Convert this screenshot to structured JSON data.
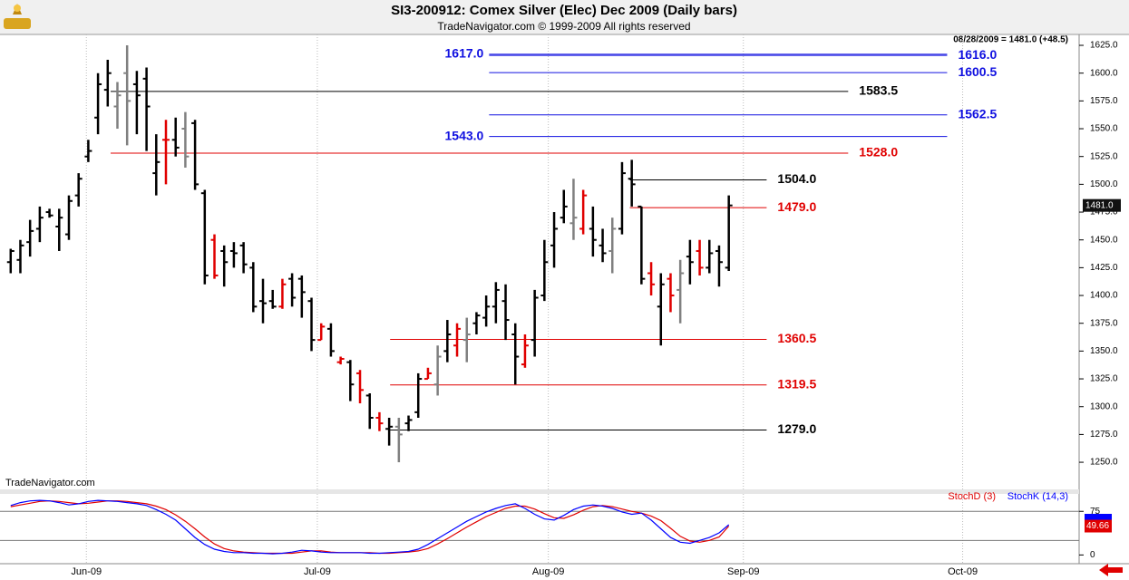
{
  "chart_data": [
    {
      "type": "ohlc",
      "title": "SI3-200912:  Comex Silver (Elec) Dec 2009  (Daily bars)",
      "subtitle": "TradeNavigator.com © 1999-2009 All rights reserved",
      "notice": "08/28/2009 = 1481.0 (+48.5)",
      "watermark": "TradeNavigator.com",
      "last_label": "1481.0",
      "x": [
        0,
        1,
        2,
        3,
        4,
        5,
        6,
        7,
        8,
        9,
        10,
        11,
        12,
        13,
        14,
        15,
        16,
        17,
        18,
        19,
        20,
        21,
        22,
        23,
        24,
        25,
        26,
        27,
        28,
        29,
        30,
        31,
        32,
        33,
        34,
        35,
        36,
        37,
        38,
        39,
        40,
        41,
        42,
        43,
        44,
        45,
        46,
        47,
        48,
        49,
        50,
        51,
        52,
        53,
        54,
        55,
        56,
        57,
        58,
        59,
        60,
        61,
        62,
        63,
        64,
        65,
        66,
        67,
        68,
        69,
        70,
        71,
        72,
        73,
        74
      ],
      "open": [
        1430,
        1432,
        1448,
        1460,
        1475,
        1462,
        1455,
        1490,
        1525,
        1560,
        1585,
        1570,
        1600,
        1590,
        1595,
        1510,
        1540,
        1540,
        1550,
        1555,
        1492,
        1450,
        1440,
        1440,
        1445,
        1425,
        1395,
        1395,
        1390,
        1415,
        1415,
        1395,
        1360,
        1370,
        1340,
        1340,
        1330,
        1310,
        1290,
        1280,
        1282,
        1285,
        1295,
        1325,
        1320,
        1350,
        1355,
        1360,
        1375,
        1380,
        1390,
        1395,
        1365,
        1338,
        1360,
        1400,
        1445,
        1470,
        1465,
        1460,
        1460,
        1445,
        1440,
        1460,
        1505,
        1480,
        1420,
        1390,
        1415,
        1405,
        1435,
        1440,
        1425,
        1440,
        1425
      ],
      "high": [
        1442,
        1450,
        1468,
        1480,
        1478,
        1478,
        1490,
        1510,
        1540,
        1600,
        1612,
        1592,
        1625,
        1602,
        1605,
        1545,
        1558,
        1560,
        1565,
        1558,
        1495,
        1455,
        1445,
        1448,
        1448,
        1430,
        1415,
        1405,
        1415,
        1420,
        1418,
        1398,
        1375,
        1375,
        1345,
        1342,
        1333,
        1312,
        1295,
        1290,
        1290,
        1292,
        1330,
        1335,
        1355,
        1378,
        1375,
        1380,
        1385,
        1400,
        1412,
        1410,
        1375,
        1365,
        1405,
        1450,
        1475,
        1495,
        1505,
        1495,
        1480,
        1460,
        1470,
        1520,
        1522,
        1480,
        1430,
        1420,
        1420,
        1432,
        1450,
        1450,
        1450,
        1445,
        1490
      ],
      "low": [
        1420,
        1420,
        1435,
        1448,
        1470,
        1440,
        1450,
        1480,
        1520,
        1545,
        1570,
        1550,
        1535,
        1545,
        1530,
        1490,
        1500,
        1525,
        1515,
        1495,
        1410,
        1415,
        1408,
        1425,
        1420,
        1385,
        1375,
        1388,
        1388,
        1390,
        1380,
        1350,
        1360,
        1345,
        1338,
        1305,
        1303,
        1280,
        1278,
        1265,
        1250,
        1278,
        1290,
        1325,
        1310,
        1340,
        1345,
        1340,
        1365,
        1372,
        1375,
        1360,
        1320,
        1335,
        1345,
        1395,
        1425,
        1465,
        1450,
        1455,
        1435,
        1430,
        1420,
        1455,
        1480,
        1410,
        1400,
        1355,
        1385,
        1375,
        1410,
        1418,
        1420,
        1408,
        1422
      ],
      "close": [
        1440,
        1445,
        1458,
        1470,
        1472,
        1470,
        1485,
        1505,
        1530,
        1590,
        1600,
        1580,
        1575,
        1580,
        1570,
        1520,
        1540,
        1533,
        1525,
        1500,
        1418,
        1418,
        1430,
        1438,
        1428,
        1390,
        1393,
        1390,
        1410,
        1398,
        1403,
        1360,
        1372,
        1350,
        1343,
        1320,
        1315,
        1290,
        1285,
        1282,
        1275,
        1288,
        1325,
        1330,
        1345,
        1365,
        1370,
        1365,
        1382,
        1390,
        1405,
        1378,
        1345,
        1355,
        1398,
        1430,
        1460,
        1480,
        1470,
        1490,
        1450,
        1438,
        1460,
        1510,
        1500,
        1415,
        1410,
        1410,
        1400,
        1420,
        1430,
        1425,
        1438,
        1430,
        1481
      ],
      "bar_colors": [
        "#000000",
        "#000000",
        "#000000",
        "#000000",
        "#000000",
        "#000000",
        "#000000",
        "#000000",
        "#000000",
        "#000000",
        "#000000",
        "#808080",
        "#808080",
        "#000000",
        "#000000",
        "#000000",
        "#e00000",
        "#000000",
        "#808080",
        "#000000",
        "#000000",
        "#e00000",
        "#000000",
        "#000000",
        "#000000",
        "#000000",
        "#000000",
        "#000000",
        "#e00000",
        "#000000",
        "#000000",
        "#000000",
        "#e00000",
        "#000000",
        "#e00000",
        "#000000",
        "#e00000",
        "#000000",
        "#e00000",
        "#000000",
        "#808080",
        "#000000",
        "#000000",
        "#e00000",
        "#808080",
        "#000000",
        "#e00000",
        "#808080",
        "#000000",
        "#000000",
        "#000000",
        "#000000",
        "#000000",
        "#e00000",
        "#000000",
        "#000000",
        "#000000",
        "#000000",
        "#808080",
        "#e00000",
        "#000000",
        "#000000",
        "#808080",
        "#000000",
        "#000000",
        "#000000",
        "#e00000",
        "#000000",
        "#e00000",
        "#808080",
        "#000000",
        "#e00000",
        "#000000",
        "#000000",
        "#000000"
      ],
      "xlim": [
        -1.1,
        110.1
      ],
      "ylim": [
        1225.6,
        1634.8
      ],
      "yticks": [
        {
          "value": 1250,
          "label": "1250.0"
        },
        {
          "value": 1275,
          "label": "1275.0"
        },
        {
          "value": 1300,
          "label": "1300.0"
        },
        {
          "value": 1325,
          "label": "1325.0"
        },
        {
          "value": 1350,
          "label": "1350.0"
        },
        {
          "value": 1375,
          "label": "1375.0"
        },
        {
          "value": 1400,
          "label": "1400.0"
        },
        {
          "value": 1425,
          "label": "1425.0"
        },
        {
          "value": 1450,
          "label": "1450.0"
        },
        {
          "value": 1475,
          "label": "1475.0"
        },
        {
          "value": 1500,
          "label": "1500.0"
        },
        {
          "value": 1525,
          "label": "1525.0"
        },
        {
          "value": 1550,
          "label": "1550.0"
        },
        {
          "value": 1575,
          "label": "1575.0"
        },
        {
          "value": 1600,
          "label": "1600.0"
        },
        {
          "value": 1625,
          "label": "1625.0"
        }
      ],
      "levels": [
        {
          "value": 1617,
          "label": "1617.0",
          "color": "#1010e0",
          "from": 49.3,
          "to": 96.5,
          "side": "left"
        },
        {
          "value": 1616,
          "label": "1616.0",
          "color": "#1010e0",
          "from": 49.3,
          "to": 96.5,
          "side": "right"
        },
        {
          "value": 1600.5,
          "label": "1600.5",
          "color": "#1010e0",
          "from": 49.3,
          "to": 96.5,
          "side": "right"
        },
        {
          "value": 1583.5,
          "label": "1583.5",
          "color": "#000000",
          "from": 10.3,
          "to": 86.3,
          "side": "right"
        },
        {
          "value": 1562.5,
          "label": "1562.5",
          "color": "#1010e0",
          "from": 49.3,
          "to": 96.5,
          "side": "right"
        },
        {
          "value": 1543,
          "label": "1543.0",
          "color": "#1010e0",
          "from": 49.3,
          "to": 96.5,
          "side": "left"
        },
        {
          "value": 1528,
          "label": "1528.0",
          "color": "#e00000",
          "from": 10.3,
          "to": 86.3,
          "side": "right"
        },
        {
          "value": 1504,
          "label": "1504.0",
          "color": "#000000",
          "from": 63.8,
          "to": 77.9,
          "side": "right"
        },
        {
          "value": 1479,
          "label": "1479.0",
          "color": "#e00000",
          "from": 63.8,
          "to": 77.9,
          "side": "right"
        },
        {
          "value": 1360.5,
          "label": "1360.5",
          "color": "#e00000",
          "from": 39.1,
          "to": 77.9,
          "side": "right"
        },
        {
          "value": 1319.5,
          "label": "1319.5",
          "color": "#e00000",
          "from": 39.1,
          "to": 77.9,
          "side": "right"
        },
        {
          "value": 1279,
          "label": "1279.0",
          "color": "#000000",
          "from": 39.1,
          "to": 77.9,
          "side": "right"
        }
      ]
    },
    {
      "type": "line",
      "x": [
        0,
        1,
        2,
        3,
        4,
        5,
        6,
        7,
        8,
        9,
        10,
        11,
        12,
        13,
        14,
        15,
        16,
        17,
        18,
        19,
        20,
        21,
        22,
        23,
        24,
        25,
        26,
        27,
        28,
        29,
        30,
        31,
        32,
        33,
        34,
        35,
        36,
        37,
        38,
        39,
        40,
        41,
        42,
        43,
        44,
        45,
        46,
        47,
        48,
        49,
        50,
        51,
        52,
        53,
        54,
        55,
        56,
        57,
        58,
        59,
        60,
        61,
        62,
        63,
        64,
        65,
        66,
        67,
        68,
        69,
        70,
        71,
        72,
        73,
        74
      ],
      "series": [
        {
          "name": "StochD (3)",
          "color": "#e00000",
          "values": [
            83,
            86,
            89,
            92,
            93,
            92,
            90,
            88,
            89,
            91,
            93,
            93,
            92,
            90,
            88,
            84,
            78,
            69,
            58,
            45,
            31,
            19,
            11,
            7,
            5,
            4,
            3,
            3,
            3,
            3,
            5,
            7,
            7,
            5,
            4,
            4,
            4,
            4,
            3,
            3,
            4,
            5,
            7,
            11,
            19,
            28,
            38,
            48,
            57,
            66,
            73,
            80,
            84,
            84,
            79,
            71,
            64,
            63,
            69,
            77,
            83,
            85,
            83,
            79,
            75,
            72,
            67,
            59,
            46,
            32,
            24,
            22,
            25,
            31,
            49.66
          ]
        },
        {
          "name": "StochK (14,3)",
          "color": "#0000ff",
          "values": [
            85,
            90,
            93,
            94,
            93,
            90,
            86,
            88,
            92,
            94,
            93,
            92,
            90,
            88,
            85,
            78,
            70,
            60,
            45,
            30,
            18,
            10,
            6,
            4,
            4,
            3,
            3,
            2,
            3,
            5,
            8,
            7,
            5,
            4,
            4,
            4,
            4,
            3,
            3,
            4,
            5,
            6,
            10,
            18,
            28,
            38,
            48,
            58,
            66,
            74,
            80,
            85,
            88,
            80,
            70,
            62,
            60,
            68,
            78,
            84,
            86,
            84,
            80,
            74,
            70,
            72,
            60,
            45,
            30,
            22,
            20,
            25,
            30,
            38,
            52
          ]
        }
      ],
      "xlim": [
        -1.1,
        110.1
      ],
      "ylim": [
        -15,
        105
      ],
      "yticks": [
        0,
        75
      ],
      "ref_lines": [
        25,
        75
      ],
      "xticks": [
        {
          "value": 7.8,
          "label": "Jun-09"
        },
        {
          "value": 31.6,
          "label": "Jul-09"
        },
        {
          "value": 55.4,
          "label": "Aug-09"
        },
        {
          "value": 75.5,
          "label": "Sep-09"
        },
        {
          "value": 98.1,
          "label": "Oct-09"
        }
      ]
    }
  ]
}
